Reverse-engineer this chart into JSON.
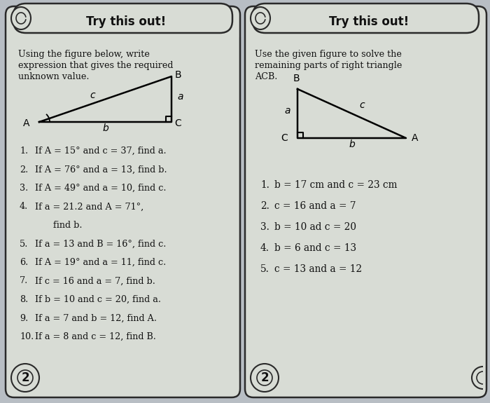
{
  "bg_color": "#b8bec4",
  "card_color": "#d8dcd5",
  "border_color": "#2a2a2a",
  "text_color": "#111111",
  "left_title": "Try this out!",
  "right_title": "Try this out!",
  "left_intro_lines": [
    "Using the figure below, write",
    "expression that gives the required",
    "unknown value."
  ],
  "right_intro_lines": [
    "Use the given figure to solve the",
    "remaining parts of right triangle",
    "ACB."
  ],
  "left_items": [
    "If A = 15° and c = 37, find a.",
    "If A = 76° and a = 13, find b.",
    "If A = 49° and a = 10, find c.",
    "If a = 21.2 and A = 71°,",
    "    find b.",
    "If a = 13 and B = 16°, find c.",
    "If A = 19° and a = 11, find c.",
    "If c = 16 and a = 7, find b.",
    "If b = 10 and c = 20, find a.",
    "If a = 7 and b = 12, find A.",
    "If a = 8 and c = 12, find B."
  ],
  "left_item_numbers": [
    "1.",
    "2.",
    "3.",
    "4.",
    "",
    "5.",
    "6.",
    "7.",
    "8.",
    "9.",
    "10."
  ],
  "right_items": [
    "b = 17 cm and c = 23 cm",
    "c = 16 and a = 7",
    "b = 10 ad c = 20",
    "b = 6 and c = 13",
    "c = 13 and a = 12"
  ]
}
